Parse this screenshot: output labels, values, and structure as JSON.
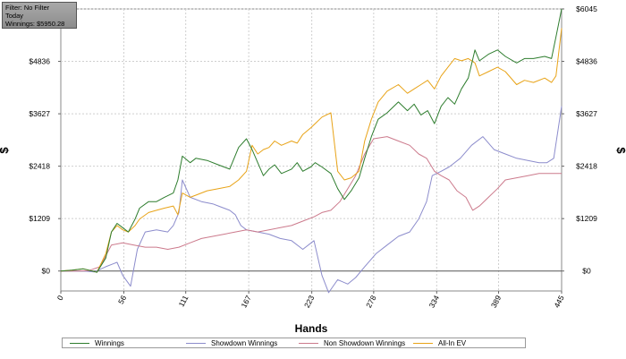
{
  "filter_box": {
    "line1": "Filter: No Filter",
    "line2": "Today",
    "line3": "Winnings: $5950.28"
  },
  "chart_data": {
    "type": "line",
    "xlabel": "Hands",
    "ylabel": "$",
    "xlim": [
      0,
      445
    ],
    "ylim": [
      -460,
      6045
    ],
    "x_ticks": [
      "0",
      "56",
      "111",
      "167",
      "223",
      "278",
      "334",
      "389",
      "445"
    ],
    "y_ticks": [
      "$0",
      "$1209",
      "$2418",
      "$3627",
      "$4836",
      "$6045"
    ],
    "grid": true,
    "legend_position": "bottom",
    "series": [
      {
        "name": "Winnings",
        "color": "#2e7d2e",
        "points": [
          [
            0,
            0
          ],
          [
            10,
            20
          ],
          [
            20,
            50
          ],
          [
            28,
            0
          ],
          [
            32,
            -30
          ],
          [
            40,
            300
          ],
          [
            45,
            900
          ],
          [
            50,
            1100
          ],
          [
            55,
            1000
          ],
          [
            60,
            900
          ],
          [
            66,
            1200
          ],
          [
            70,
            1450
          ],
          [
            78,
            1600
          ],
          [
            85,
            1600
          ],
          [
            92,
            1700
          ],
          [
            100,
            1800
          ],
          [
            104,
            2100
          ],
          [
            108,
            2650
          ],
          [
            115,
            2500
          ],
          [
            120,
            2600
          ],
          [
            130,
            2550
          ],
          [
            140,
            2450
          ],
          [
            150,
            2350
          ],
          [
            158,
            2850
          ],
          [
            165,
            3050
          ],
          [
            170,
            2800
          ],
          [
            175,
            2500
          ],
          [
            180,
            2200
          ],
          [
            185,
            2350
          ],
          [
            190,
            2450
          ],
          [
            196,
            2250
          ],
          [
            205,
            2350
          ],
          [
            210,
            2500
          ],
          [
            215,
            2300
          ],
          [
            222,
            2400
          ],
          [
            226,
            2500
          ],
          [
            232,
            2400
          ],
          [
            240,
            2250
          ],
          [
            246,
            1900
          ],
          [
            252,
            1650
          ],
          [
            258,
            1850
          ],
          [
            265,
            2150
          ],
          [
            270,
            2600
          ],
          [
            276,
            3100
          ],
          [
            282,
            3500
          ],
          [
            290,
            3650
          ],
          [
            300,
            3900
          ],
          [
            308,
            3700
          ],
          [
            314,
            3850
          ],
          [
            320,
            3600
          ],
          [
            326,
            3700
          ],
          [
            332,
            3400
          ],
          [
            338,
            3800
          ],
          [
            344,
            4000
          ],
          [
            350,
            3850
          ],
          [
            356,
            4200
          ],
          [
            362,
            4450
          ],
          [
            368,
            5100
          ],
          [
            372,
            4850
          ],
          [
            380,
            5000
          ],
          [
            388,
            5100
          ],
          [
            395,
            4950
          ],
          [
            405,
            4800
          ],
          [
            412,
            4900
          ],
          [
            420,
            4900
          ],
          [
            430,
            4950
          ],
          [
            436,
            4900
          ],
          [
            440,
            5400
          ],
          [
            445,
            6045
          ]
        ]
      },
      {
        "name": "Showdown Winnings",
        "color": "#8c8ccc",
        "points": [
          [
            0,
            0
          ],
          [
            20,
            0
          ],
          [
            30,
            -20
          ],
          [
            40,
            100
          ],
          [
            50,
            200
          ],
          [
            55,
            -100
          ],
          [
            62,
            -350
          ],
          [
            68,
            500
          ],
          [
            75,
            900
          ],
          [
            85,
            950
          ],
          [
            95,
            900
          ],
          [
            100,
            1050
          ],
          [
            105,
            1350
          ],
          [
            108,
            2100
          ],
          [
            115,
            1700
          ],
          [
            125,
            1600
          ],
          [
            135,
            1550
          ],
          [
            140,
            1500
          ],
          [
            145,
            1450
          ],
          [
            150,
            1400
          ],
          [
            155,
            1300
          ],
          [
            160,
            1050
          ],
          [
            165,
            950
          ],
          [
            175,
            900
          ],
          [
            185,
            850
          ],
          [
            195,
            750
          ],
          [
            205,
            700
          ],
          [
            215,
            500
          ],
          [
            225,
            700
          ],
          [
            232,
            -100
          ],
          [
            238,
            -500
          ],
          [
            246,
            -200
          ],
          [
            255,
            -300
          ],
          [
            262,
            -150
          ],
          [
            270,
            100
          ],
          [
            280,
            400
          ],
          [
            290,
            600
          ],
          [
            300,
            800
          ],
          [
            310,
            900
          ],
          [
            318,
            1200
          ],
          [
            325,
            1600
          ],
          [
            330,
            2200
          ],
          [
            338,
            2300
          ],
          [
            345,
            2400
          ],
          [
            355,
            2600
          ],
          [
            365,
            2900
          ],
          [
            375,
            3100
          ],
          [
            385,
            2800
          ],
          [
            395,
            2700
          ],
          [
            405,
            2600
          ],
          [
            415,
            2550
          ],
          [
            425,
            2500
          ],
          [
            432,
            2500
          ],
          [
            438,
            2600
          ],
          [
            445,
            3800
          ]
        ]
      },
      {
        "name": "Non Showdown Winnings",
        "color": "#cc7a8c",
        "points": [
          [
            0,
            0
          ],
          [
            15,
            0
          ],
          [
            25,
            10
          ],
          [
            35,
            100
          ],
          [
            45,
            600
          ],
          [
            55,
            650
          ],
          [
            65,
            600
          ],
          [
            75,
            550
          ],
          [
            85,
            550
          ],
          [
            95,
            500
          ],
          [
            105,
            550
          ],
          [
            115,
            650
          ],
          [
            125,
            750
          ],
          [
            135,
            800
          ],
          [
            145,
            850
          ],
          [
            155,
            900
          ],
          [
            165,
            950
          ],
          [
            175,
            900
          ],
          [
            185,
            950
          ],
          [
            195,
            1000
          ],
          [
            205,
            1050
          ],
          [
            215,
            1150
          ],
          [
            225,
            1250
          ],
          [
            232,
            1350
          ],
          [
            240,
            1400
          ],
          [
            248,
            1600
          ],
          [
            255,
            1900
          ],
          [
            262,
            2200
          ],
          [
            270,
            2700
          ],
          [
            278,
            3050
          ],
          [
            290,
            3100
          ],
          [
            300,
            3000
          ],
          [
            310,
            2900
          ],
          [
            318,
            2700
          ],
          [
            325,
            2600
          ],
          [
            332,
            2300
          ],
          [
            338,
            2200
          ],
          [
            345,
            2100
          ],
          [
            352,
            1850
          ],
          [
            360,
            1700
          ],
          [
            366,
            1400
          ],
          [
            372,
            1500
          ],
          [
            380,
            1700
          ],
          [
            388,
            1900
          ],
          [
            395,
            2100
          ],
          [
            405,
            2150
          ],
          [
            415,
            2200
          ],
          [
            425,
            2250
          ],
          [
            435,
            2250
          ],
          [
            445,
            2250
          ]
        ]
      },
      {
        "name": "All-In EV",
        "color": "#e8a317",
        "points": [
          [
            0,
            0
          ],
          [
            10,
            20
          ],
          [
            20,
            50
          ],
          [
            28,
            0
          ],
          [
            32,
            -30
          ],
          [
            40,
            400
          ],
          [
            45,
            900
          ],
          [
            50,
            1050
          ],
          [
            55,
            950
          ],
          [
            60,
            900
          ],
          [
            66,
            1050
          ],
          [
            70,
            1200
          ],
          [
            78,
            1350
          ],
          [
            85,
            1400
          ],
          [
            92,
            1450
          ],
          [
            100,
            1500
          ],
          [
            104,
            1300
          ],
          [
            108,
            1800
          ],
          [
            115,
            1700
          ],
          [
            120,
            1750
          ],
          [
            130,
            1850
          ],
          [
            140,
            1900
          ],
          [
            150,
            1950
          ],
          [
            158,
            2100
          ],
          [
            165,
            2300
          ],
          [
            170,
            2900
          ],
          [
            175,
            2700
          ],
          [
            180,
            2800
          ],
          [
            185,
            2850
          ],
          [
            190,
            3000
          ],
          [
            196,
            2900
          ],
          [
            205,
            3000
          ],
          [
            210,
            2950
          ],
          [
            215,
            3150
          ],
          [
            222,
            3300
          ],
          [
            226,
            3400
          ],
          [
            232,
            3550
          ],
          [
            240,
            3650
          ],
          [
            246,
            2300
          ],
          [
            252,
            2100
          ],
          [
            258,
            2150
          ],
          [
            265,
            2300
          ],
          [
            270,
            3000
          ],
          [
            276,
            3500
          ],
          [
            282,
            3900
          ],
          [
            290,
            4150
          ],
          [
            300,
            4300
          ],
          [
            308,
            4100
          ],
          [
            314,
            4200
          ],
          [
            320,
            4300
          ],
          [
            326,
            4400
          ],
          [
            332,
            4200
          ],
          [
            338,
            4500
          ],
          [
            344,
            4700
          ],
          [
            350,
            4900
          ],
          [
            356,
            4850
          ],
          [
            362,
            4900
          ],
          [
            368,
            4800
          ],
          [
            372,
            4500
          ],
          [
            380,
            4600
          ],
          [
            388,
            4700
          ],
          [
            395,
            4600
          ],
          [
            405,
            4300
          ],
          [
            412,
            4400
          ],
          [
            420,
            4350
          ],
          [
            430,
            4450
          ],
          [
            436,
            4350
          ],
          [
            440,
            4500
          ],
          [
            445,
            5600
          ]
        ]
      }
    ]
  }
}
